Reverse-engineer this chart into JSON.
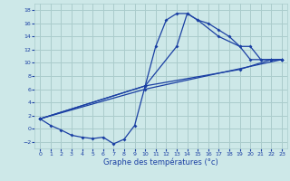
{
  "xlabel": "Graphe des températures (°c)",
  "background_color": "#cde8e8",
  "grid_color": "#aacccc",
  "line_color": "#1a3fa3",
  "xlim": [
    -0.5,
    23.5
  ],
  "ylim": [
    -3,
    19
  ],
  "yticks": [
    -2,
    0,
    2,
    4,
    6,
    8,
    10,
    12,
    14,
    16,
    18
  ],
  "xticks": [
    0,
    1,
    2,
    3,
    4,
    5,
    6,
    7,
    8,
    9,
    10,
    11,
    12,
    13,
    14,
    15,
    16,
    17,
    18,
    19,
    20,
    21,
    22,
    23
  ],
  "line1_x": [
    0,
    1,
    2,
    3,
    4,
    5,
    6,
    7,
    8,
    9,
    10,
    11,
    12,
    13,
    14,
    15,
    16,
    17,
    18,
    19,
    20,
    21,
    22,
    23
  ],
  "line1_y": [
    1.5,
    0.5,
    -0.2,
    -1.0,
    -1.3,
    -1.5,
    -1.3,
    -2.3,
    -1.6,
    0.5,
    6.5,
    12.5,
    16.5,
    17.5,
    17.5,
    16.5,
    16.0,
    15.0,
    14.0,
    12.5,
    10.5,
    10.5,
    10.5,
    10.5
  ],
  "line2_x": [
    0,
    10,
    13,
    14,
    15,
    17,
    19,
    20,
    21,
    22,
    23
  ],
  "line2_y": [
    1.5,
    6.5,
    12.5,
    17.5,
    16.5,
    14.0,
    12.5,
    12.5,
    10.5,
    10.5,
    10.5
  ],
  "line3_x": [
    0,
    10,
    19,
    22,
    23
  ],
  "line3_y": [
    1.5,
    6.5,
    9.0,
    10.5,
    10.5
  ],
  "line4_x": [
    0,
    10,
    23
  ],
  "line4_y": [
    1.5,
    6.0,
    10.5
  ]
}
